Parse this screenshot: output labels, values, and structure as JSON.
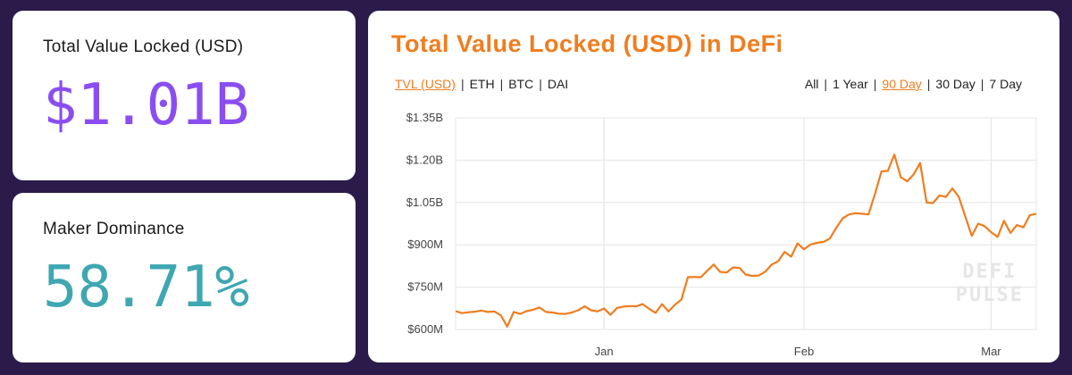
{
  "stats": {
    "tvl": {
      "label": "Total Value Locked (USD)",
      "value": "$1.01B"
    },
    "maker": {
      "label": "Maker Dominance",
      "value": "58.71%"
    }
  },
  "chart_panel": {
    "title": "Total Value Locked (USD) in DeFi",
    "units": [
      "TVL (USD)",
      "ETH",
      "BTC",
      "DAI"
    ],
    "active_unit": "TVL (USD)",
    "ranges": [
      "All",
      "1 Year",
      "90 Day",
      "30 Day",
      "7 Day"
    ],
    "active_range": "90 Day",
    "watermark": [
      "DEFI",
      "PULSE"
    ]
  },
  "colors": {
    "accent": "#ef7d1f",
    "tvl_value": "#8a4ef0",
    "maker_value": "#3fa7b1",
    "background": "#2a1b4a"
  },
  "chart_data": {
    "type": "line",
    "title": "Total Value Locked (USD) in DeFi",
    "xlabel": "",
    "ylabel": "",
    "ylim": [
      600000000,
      1350000000
    ],
    "yticks": [
      "$600M",
      "$750M",
      "$900M",
      "$1.05B",
      "$1.20B",
      "$1.35B"
    ],
    "xticks": [
      "Jan",
      "Feb",
      "Mar"
    ],
    "grid": true,
    "x": [
      "2019-12-09",
      "2019-12-10",
      "2019-12-11",
      "2019-12-12",
      "2019-12-13",
      "2019-12-14",
      "2019-12-15",
      "2019-12-16",
      "2019-12-17",
      "2019-12-18",
      "2019-12-19",
      "2019-12-20",
      "2019-12-21",
      "2019-12-22",
      "2019-12-23",
      "2019-12-24",
      "2019-12-25",
      "2019-12-26",
      "2019-12-27",
      "2019-12-28",
      "2019-12-29",
      "2019-12-30",
      "2019-12-31",
      "2020-01-01",
      "2020-01-02",
      "2020-01-03",
      "2020-01-04",
      "2020-01-05",
      "2020-01-06",
      "2020-01-07",
      "2020-01-08",
      "2020-01-09",
      "2020-01-10",
      "2020-01-11",
      "2020-01-12",
      "2020-01-13",
      "2020-01-14",
      "2020-01-15",
      "2020-01-16",
      "2020-01-17",
      "2020-01-18",
      "2020-01-19",
      "2020-01-20",
      "2020-01-21",
      "2020-01-22",
      "2020-01-23",
      "2020-01-24",
      "2020-01-25",
      "2020-01-26",
      "2020-01-27",
      "2020-01-28",
      "2020-01-29",
      "2020-01-30",
      "2020-01-31",
      "2020-02-01",
      "2020-02-02",
      "2020-02-03",
      "2020-02-04",
      "2020-02-05",
      "2020-02-06",
      "2020-02-07",
      "2020-02-08",
      "2020-02-09",
      "2020-02-10",
      "2020-02-11",
      "2020-02-12",
      "2020-02-13",
      "2020-02-14",
      "2020-02-15",
      "2020-02-16",
      "2020-02-17",
      "2020-02-18",
      "2020-02-19",
      "2020-02-20",
      "2020-02-21",
      "2020-02-22",
      "2020-02-23",
      "2020-02-24",
      "2020-02-25",
      "2020-02-26",
      "2020-02-27",
      "2020-02-28",
      "2020-02-29",
      "2020-03-01",
      "2020-03-02",
      "2020-03-03",
      "2020-03-04",
      "2020-03-05",
      "2020-03-06",
      "2020-03-07",
      "2020-03-08"
    ],
    "series": [
      {
        "values": [
          665000000,
          658000000,
          661000000,
          663000000,
          667000000,
          662000000,
          664000000,
          650000000,
          610000000,
          662000000,
          655000000,
          665000000,
          670000000,
          678000000,
          662000000,
          660000000,
          656000000,
          655000000,
          660000000,
          668000000,
          682000000,
          668000000,
          664000000,
          674000000,
          652000000,
          676000000,
          681000000,
          683000000,
          682000000,
          690000000,
          673000000,
          659000000,
          690000000,
          664000000,
          688000000,
          706000000,
          785000000,
          786000000,
          785000000,
          808000000,
          830000000,
          804000000,
          802000000,
          820000000,
          818000000,
          794000000,
          790000000,
          791000000,
          805000000,
          830000000,
          842000000,
          875000000,
          858000000,
          905000000,
          884000000,
          901000000,
          907000000,
          910000000,
          922000000,
          960000000,
          994000000,
          1008000000,
          1012000000,
          1010000000,
          1008000000,
          1080000000,
          1160000000,
          1162000000,
          1220000000,
          1140000000,
          1125000000,
          1150000000,
          1190000000,
          1050000000,
          1048000000,
          1075000000,
          1070000000,
          1100000000,
          1070000000,
          1000000000,
          932000000,
          975000000,
          966000000,
          945000000,
          928000000,
          985000000,
          942000000,
          970000000,
          962000000,
          1005000000,
          1010000000
        ]
      }
    ]
  }
}
